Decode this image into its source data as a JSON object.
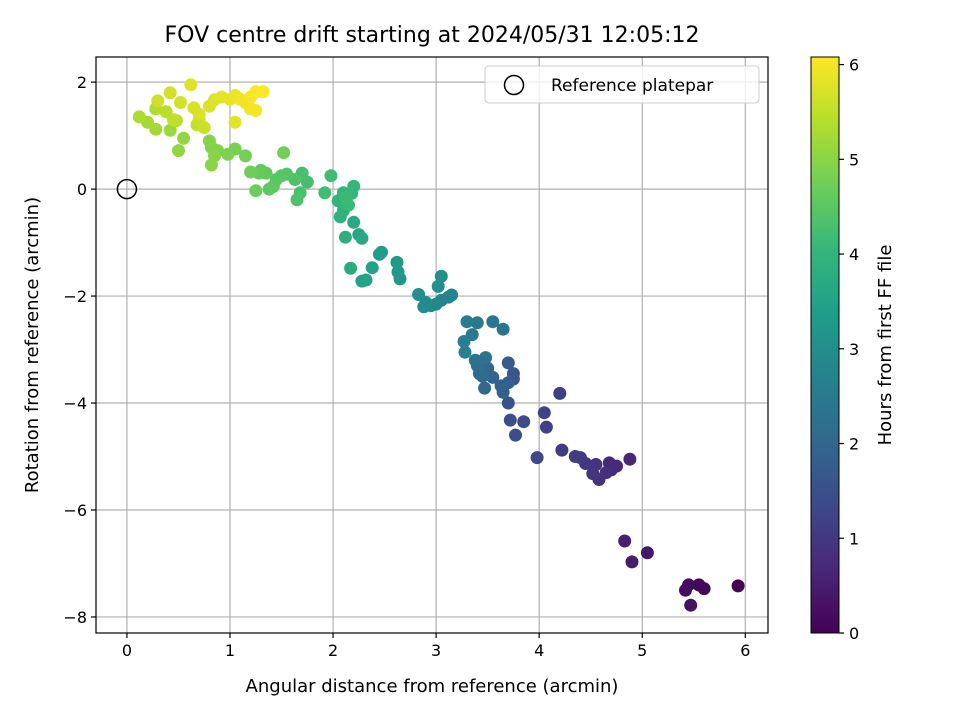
{
  "chart_data": {
    "type": "scatter",
    "title": "FOV centre drift starting at 2024/05/31 12:05:12",
    "xlabel": "Angular distance from reference (arcmin)",
    "ylabel": "Rotation from reference (arcmin)",
    "xlim": [
      -0.3,
      6.22
    ],
    "ylim": [
      -8.3,
      2.47
    ],
    "xticks": [
      0,
      1,
      2,
      3,
      4,
      5,
      6
    ],
    "yticks": [
      -8,
      -6,
      -4,
      -2,
      0,
      2
    ],
    "grid": true,
    "legend": {
      "placement": "top-right",
      "entries": [
        "Reference platepar"
      ]
    },
    "reference_point": {
      "name": "Reference platepar",
      "x": 0,
      "y": 0
    },
    "colorbar": {
      "label": "Hours from first FF file",
      "range": [
        0,
        6.08
      ],
      "ticks": [
        0,
        1,
        2,
        3,
        4,
        5,
        6
      ],
      "colormap": "viridis"
    },
    "colormap_stops": [
      "#440154",
      "#482878",
      "#3e4989",
      "#31688e",
      "#26828e",
      "#1f9e89",
      "#35b779",
      "#6ece58",
      "#b5de2b",
      "#fde725"
    ],
    "series": [
      {
        "marker": "filled-circle",
        "points": [
          [
            5.93,
            -7.42,
            0.05
          ],
          [
            5.55,
            -7.4,
            0.1
          ],
          [
            5.6,
            -7.47,
            0.14
          ],
          [
            5.45,
            -7.4,
            0.19
          ],
          [
            5.42,
            -7.5,
            0.23
          ],
          [
            5.47,
            -7.78,
            0.28
          ],
          [
            5.05,
            -6.8,
            0.4
          ],
          [
            4.9,
            -6.97,
            0.48
          ],
          [
            4.83,
            -6.58,
            0.55
          ],
          [
            4.88,
            -5.05,
            0.65
          ],
          [
            4.75,
            -5.18,
            0.7
          ],
          [
            4.68,
            -5.12,
            0.74
          ],
          [
            4.7,
            -5.25,
            0.78
          ],
          [
            4.65,
            -5.3,
            0.82
          ],
          [
            4.58,
            -5.43,
            0.86
          ],
          [
            4.55,
            -5.15,
            0.9
          ],
          [
            4.52,
            -5.32,
            0.94
          ],
          [
            4.45,
            -5.13,
            0.98
          ],
          [
            4.4,
            -5.02,
            1.02
          ],
          [
            4.35,
            -5.0,
            1.06
          ],
          [
            4.22,
            -4.88,
            1.1
          ],
          [
            4.2,
            -3.82,
            1.15
          ],
          [
            4.07,
            -4.45,
            1.2
          ],
          [
            4.05,
            -4.18,
            1.25
          ],
          [
            3.98,
            -5.02,
            1.3
          ],
          [
            3.85,
            -4.35,
            1.4
          ],
          [
            3.77,
            -4.6,
            1.45
          ],
          [
            3.72,
            -4.32,
            1.5
          ],
          [
            3.7,
            -4.0,
            1.55
          ],
          [
            3.75,
            -3.55,
            1.62
          ],
          [
            3.75,
            -3.45,
            1.68
          ],
          [
            3.7,
            -3.25,
            1.72
          ],
          [
            3.7,
            -3.62,
            1.78
          ],
          [
            3.65,
            -3.8,
            1.85
          ],
          [
            3.63,
            -3.68,
            1.9
          ],
          [
            3.55,
            -3.52,
            1.95
          ],
          [
            3.5,
            -3.35,
            2.0
          ],
          [
            3.47,
            -3.72,
            2.05
          ],
          [
            3.45,
            -3.5,
            2.1
          ],
          [
            3.42,
            -3.45,
            2.15
          ],
          [
            3.4,
            -3.3,
            2.2
          ],
          [
            3.38,
            -3.2,
            2.25
          ],
          [
            3.48,
            -3.15,
            2.3
          ],
          [
            3.65,
            -2.62,
            2.35
          ],
          [
            3.55,
            -2.48,
            2.4
          ],
          [
            3.4,
            -2.5,
            2.45
          ],
          [
            3.35,
            -2.72,
            2.5
          ],
          [
            3.3,
            -2.48,
            2.55
          ],
          [
            3.27,
            -2.85,
            2.6
          ],
          [
            3.28,
            -3.05,
            2.65
          ],
          [
            3.15,
            -1.98,
            2.72
          ],
          [
            3.12,
            -2.02,
            2.75
          ],
          [
            3.05,
            -2.08,
            2.78
          ],
          [
            3.0,
            -2.15,
            2.82
          ],
          [
            2.95,
            -2.18,
            2.86
          ],
          [
            2.9,
            -2.12,
            2.9
          ],
          [
            2.88,
            -2.2,
            2.94
          ],
          [
            2.83,
            -1.97,
            2.98
          ],
          [
            3.02,
            -1.82,
            3.02
          ],
          [
            3.05,
            -1.63,
            3.06
          ],
          [
            2.65,
            -1.68,
            3.2
          ],
          [
            2.63,
            -1.55,
            3.25
          ],
          [
            2.62,
            -1.37,
            3.3
          ],
          [
            2.45,
            -1.22,
            3.35
          ],
          [
            2.47,
            -1.18,
            3.4
          ],
          [
            2.38,
            -1.47,
            3.45
          ],
          [
            2.32,
            -1.7,
            3.5
          ],
          [
            2.28,
            -1.72,
            3.55
          ],
          [
            2.25,
            -0.85,
            3.6
          ],
          [
            2.28,
            -0.92,
            3.65
          ],
          [
            2.2,
            -0.62,
            3.7
          ],
          [
            2.17,
            -1.48,
            3.75
          ],
          [
            2.12,
            -0.9,
            3.8
          ],
          [
            2.1,
            -0.28,
            3.85
          ],
          [
            2.1,
            -0.4,
            3.88
          ],
          [
            2.07,
            -0.52,
            3.92
          ],
          [
            2.05,
            -0.22,
            3.95
          ],
          [
            2.1,
            -0.07,
            3.98
          ],
          [
            2.2,
            0.05,
            4.02
          ],
          [
            2.18,
            -0.08,
            4.06
          ],
          [
            2.15,
            -0.3,
            4.1
          ],
          [
            2.12,
            -0.15,
            4.13
          ],
          [
            1.98,
            0.25,
            4.17
          ],
          [
            1.92,
            -0.07,
            4.2
          ],
          [
            1.75,
            0.13,
            4.25
          ],
          [
            1.7,
            0.3,
            4.28
          ],
          [
            1.68,
            -0.07,
            4.32
          ],
          [
            1.65,
            -0.2,
            4.35
          ],
          [
            1.63,
            0.18,
            4.38
          ],
          [
            1.55,
            0.28,
            4.42
          ],
          [
            1.5,
            0.25,
            4.45
          ],
          [
            1.45,
            0.18,
            4.48
          ],
          [
            1.42,
            0.05,
            4.52
          ],
          [
            1.38,
            0.0,
            4.55
          ],
          [
            1.35,
            0.3,
            4.58
          ],
          [
            1.3,
            0.35,
            4.62
          ],
          [
            1.28,
            0.3,
            4.65
          ],
          [
            1.25,
            -0.03,
            4.68
          ],
          [
            1.2,
            0.32,
            4.72
          ],
          [
            1.52,
            0.68,
            4.75
          ],
          [
            1.15,
            0.62,
            4.78
          ],
          [
            1.05,
            0.75,
            4.82
          ],
          [
            0.98,
            0.65,
            4.85
          ],
          [
            0.88,
            0.72,
            4.88
          ],
          [
            0.82,
            0.78,
            4.92
          ],
          [
            0.8,
            0.9,
            4.95
          ],
          [
            0.85,
            0.62,
            4.97
          ],
          [
            0.82,
            0.45,
            5.0
          ],
          [
            0.55,
            0.95,
            5.05
          ],
          [
            0.5,
            0.72,
            5.08
          ],
          [
            0.42,
            1.1,
            5.15
          ],
          [
            0.28,
            1.12,
            5.2
          ],
          [
            0.2,
            1.25,
            5.25
          ],
          [
            0.12,
            1.35,
            5.3
          ],
          [
            0.28,
            1.5,
            5.35
          ],
          [
            0.48,
            1.28,
            5.4
          ],
          [
            0.38,
            1.45,
            5.45
          ],
          [
            0.45,
            1.3,
            5.5
          ],
          [
            0.68,
            1.2,
            5.55
          ],
          [
            0.7,
            1.3,
            5.58
          ],
          [
            0.75,
            1.15,
            5.6
          ],
          [
            0.3,
            1.65,
            5.63
          ],
          [
            0.42,
            1.8,
            5.65
          ],
          [
            0.52,
            1.62,
            5.68
          ],
          [
            0.65,
            1.52,
            5.7
          ],
          [
            0.7,
            1.4,
            5.72
          ],
          [
            0.8,
            1.55,
            5.75
          ],
          [
            0.85,
            1.67,
            5.78
          ],
          [
            0.62,
            1.95,
            5.8
          ],
          [
            1.05,
            1.25,
            5.82
          ],
          [
            0.92,
            1.72,
            5.85
          ],
          [
            1.0,
            1.68,
            5.88
          ],
          [
            1.05,
            1.75,
            5.9
          ],
          [
            1.1,
            1.68,
            5.93
          ],
          [
            1.15,
            1.62,
            5.95
          ],
          [
            1.2,
            1.5,
            5.97
          ],
          [
            1.25,
            1.47,
            6.0
          ],
          [
            1.2,
            1.72,
            6.02
          ],
          [
            1.25,
            1.82,
            6.04
          ],
          [
            1.32,
            1.82,
            6.06
          ]
        ]
      }
    ]
  }
}
